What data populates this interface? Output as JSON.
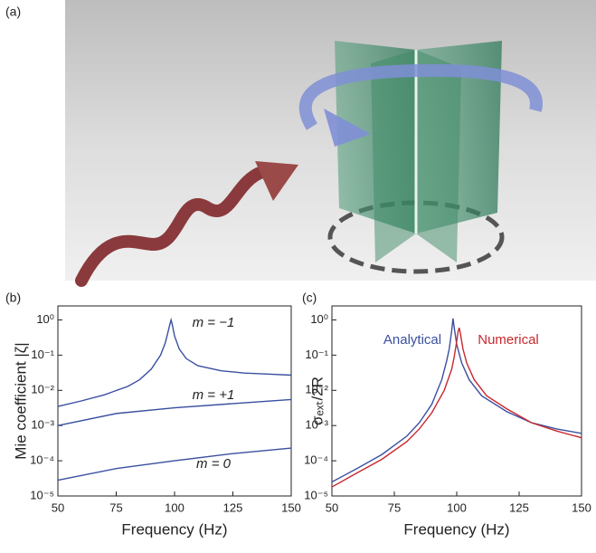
{
  "panel_labels": [
    "(a)",
    "(b)",
    "(c)"
  ],
  "chart_data": [
    {
      "type": "line",
      "xlabel": "Frequency (Hz)",
      "ylabel": "Mie coefficient |ζ|",
      "log_y": true,
      "xlim": [
        50,
        150
      ],
      "xticks": [
        50,
        75,
        100,
        125,
        150
      ],
      "ylim": [
        1e-05,
        2.5
      ],
      "yticks": [
        {
          "value": 1e-05,
          "label": "10⁻⁵"
        },
        {
          "value": 0.0001,
          "label": "10⁻⁴"
        },
        {
          "value": 0.001,
          "label": "10⁻³"
        },
        {
          "value": 0.01,
          "label": "10⁻²"
        },
        {
          "value": 0.1,
          "label": "10⁻¹"
        },
        {
          "value": 1,
          "label": "10⁰"
        }
      ],
      "series": [
        {
          "name": "m = −1",
          "color": "#3a4fa0",
          "x": [
            50,
            60,
            70,
            80,
            85,
            90,
            94,
            96,
            97,
            98,
            98.5,
            99,
            100,
            102,
            105,
            110,
            120,
            130,
            140,
            150
          ],
          "values": [
            0.0035,
            0.005,
            0.0075,
            0.013,
            0.02,
            0.04,
            0.1,
            0.22,
            0.4,
            0.75,
            1.0,
            0.75,
            0.35,
            0.15,
            0.08,
            0.05,
            0.036,
            0.031,
            0.029,
            0.027
          ]
        },
        {
          "name": "m = +1",
          "color": "#3a4fa0",
          "x": [
            50,
            75,
            100,
            125,
            150
          ],
          "values": [
            0.001,
            0.0022,
            0.0032,
            0.0042,
            0.0055
          ]
        },
        {
          "name": "m = 0",
          "color": "#3a4fa0",
          "x": [
            50,
            75,
            100,
            125,
            150
          ],
          "values": [
            2.8e-05,
            6e-05,
            0.0001,
            0.00016,
            0.00023
          ]
        }
      ]
    },
    {
      "type": "line",
      "xlabel": "Frequency (Hz)",
      "ylabel": "σₑₓₜ/2R",
      "log_y": true,
      "xlim": [
        50,
        150
      ],
      "xticks": [
        50,
        75,
        100,
        125,
        150
      ],
      "ylim": [
        1e-05,
        2.5
      ],
      "yticks": [
        {
          "value": 1e-05,
          "label": "10⁻⁵"
        },
        {
          "value": 0.0001,
          "label": "10⁻⁴"
        },
        {
          "value": 0.001,
          "label": "10⁻³"
        },
        {
          "value": 0.01,
          "label": "10⁻²"
        },
        {
          "value": 0.1,
          "label": "10⁻¹"
        },
        {
          "value": 1,
          "label": "10⁰"
        }
      ],
      "series": [
        {
          "name": "Analytical",
          "color": "#3a4fa0",
          "x": [
            50,
            60,
            70,
            80,
            85,
            90,
            94,
            96,
            97,
            98,
            98.5,
            99,
            100,
            102,
            105,
            110,
            120,
            130,
            140,
            150
          ],
          "values": [
            2.5e-05,
            6e-05,
            0.00015,
            0.0005,
            0.0012,
            0.004,
            0.02,
            0.07,
            0.15,
            0.5,
            1.1,
            0.6,
            0.2,
            0.06,
            0.02,
            0.007,
            0.0025,
            0.0012,
            0.0008,
            0.0006
          ]
        },
        {
          "name": "Numerical",
          "color": "#c8282e",
          "x": [
            50,
            60,
            70,
            80,
            85,
            90,
            95,
            98,
            99,
            100,
            100.5,
            101,
            101.5,
            102.5,
            104,
            107,
            112,
            120,
            130,
            140,
            150
          ],
          "values": [
            1.8e-05,
            4.5e-05,
            0.00011,
            0.00035,
            0.0008,
            0.0023,
            0.01,
            0.04,
            0.09,
            0.25,
            0.45,
            0.6,
            0.4,
            0.15,
            0.06,
            0.02,
            0.007,
            0.003,
            0.0012,
            0.0007,
            0.00045
          ]
        }
      ]
    }
  ]
}
